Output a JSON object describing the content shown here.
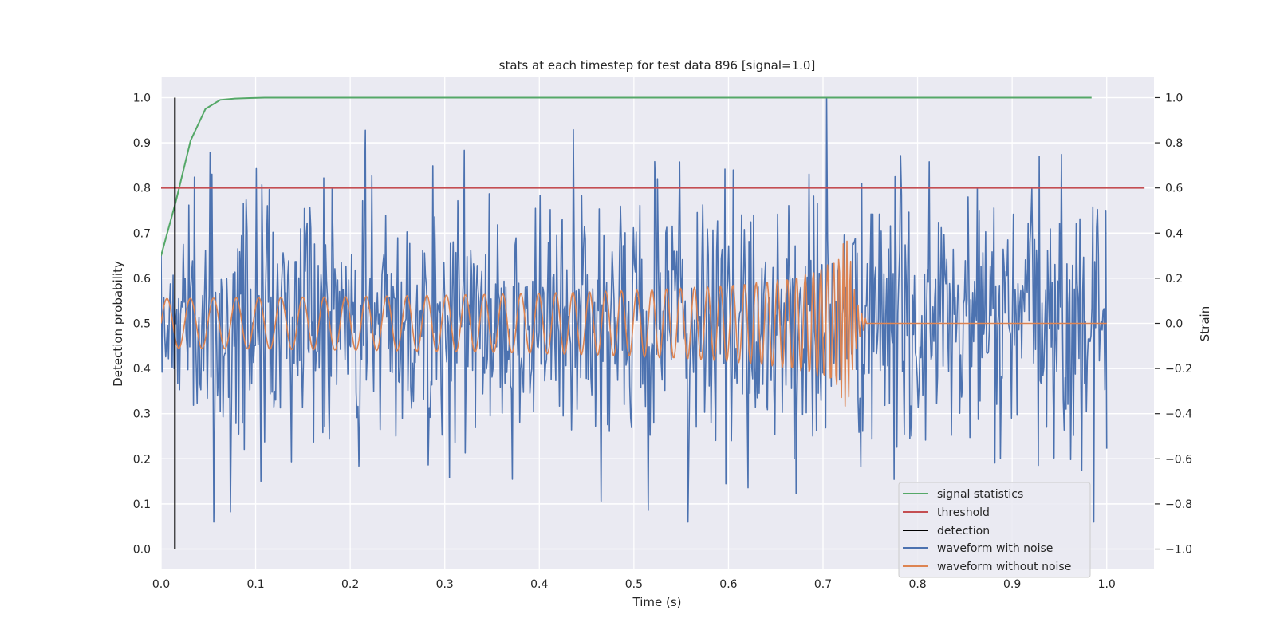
{
  "chart_data": {
    "type": "line",
    "title": "stats at each timestep for test data 896 [signal=1.0]",
    "xlabel": "Time (s)",
    "ylabel_left": "Detection probability",
    "ylabel_right": "Strain",
    "xlim": [
      0.0,
      1.05
    ],
    "ylim_left": [
      -0.045,
      1.045
    ],
    "ylim_right": [
      -1.09,
      1.09
    ],
    "xticks": [
      0.0,
      0.1,
      0.2,
      0.3,
      0.4,
      0.5,
      0.6,
      0.7,
      0.8,
      0.9,
      1.0
    ],
    "xtick_labels": [
      "0.0",
      "0.1",
      "0.2",
      "0.3",
      "0.4",
      "0.5",
      "0.6",
      "0.7",
      "0.8",
      "0.9",
      "1.0"
    ],
    "yticks_left": [
      0.0,
      0.1,
      0.2,
      0.3,
      0.4,
      0.5,
      0.6,
      0.7,
      0.8,
      0.9,
      1.0
    ],
    "ytick_labels_left": [
      "0.0",
      "0.1",
      "0.2",
      "0.3",
      "0.4",
      "0.5",
      "0.6",
      "0.7",
      "0.8",
      "0.9",
      "1.0"
    ],
    "yticks_right": [
      -1.0,
      -0.8,
      -0.6,
      -0.4,
      -0.2,
      0.0,
      0.2,
      0.4,
      0.6,
      0.8,
      1.0
    ],
    "ytick_labels_right": [
      "−1.0",
      "−0.8",
      "−0.6",
      "−0.4",
      "−0.2",
      "0.0",
      "0.2",
      "0.4",
      "0.6",
      "0.8",
      "1.0"
    ],
    "grid": true,
    "legend_position": "bottom-right",
    "colors": {
      "signal_statistics": "#55a868",
      "threshold": "#c44e52",
      "detection": "#000000",
      "waveform_with_noise": "#4c72b0",
      "waveform_without_noise": "#dd8452",
      "background": "#eaeaf2",
      "grid": "#ffffff"
    },
    "series": [
      {
        "name": "signal statistics",
        "axis": "left",
        "x": [
          0.0,
          0.0156,
          0.0312,
          0.0469,
          0.0625,
          0.0781,
          0.0938,
          0.1094,
          0.125,
          0.2,
          0.3,
          0.4,
          0.5,
          0.6,
          0.7,
          0.8,
          0.9,
          0.984
        ],
        "y": [
          0.65,
          0.77,
          0.905,
          0.975,
          0.995,
          0.998,
          0.999,
          1.0,
          1.0,
          1.0,
          1.0,
          1.0,
          1.0,
          1.0,
          1.0,
          1.0,
          1.0,
          1.0
        ]
      },
      {
        "name": "threshold",
        "axis": "left",
        "x": [
          0.0,
          1.04
        ],
        "y": [
          0.8,
          0.8
        ]
      },
      {
        "name": "detection",
        "axis": "left",
        "x": [
          0.0146,
          0.0146
        ],
        "y": [
          0.0,
          1.0
        ]
      },
      {
        "name": "waveform with noise",
        "axis": "right",
        "x_range": [
          0.0,
          1.0
        ],
        "n_samples": 1024,
        "approx_min": -0.88,
        "approx_max": 1.0,
        "approx_std": 0.3,
        "seed": 896
      },
      {
        "name": "waveform without noise",
        "axis": "right",
        "x_range": [
          0.0,
          1.0
        ],
        "n_samples": 1024,
        "merger_time": 0.728,
        "start_frequency_hz": 40,
        "start_amplitude": 0.11,
        "peak_amplitude": 0.37,
        "ringdown_end": 0.745
      }
    ]
  }
}
